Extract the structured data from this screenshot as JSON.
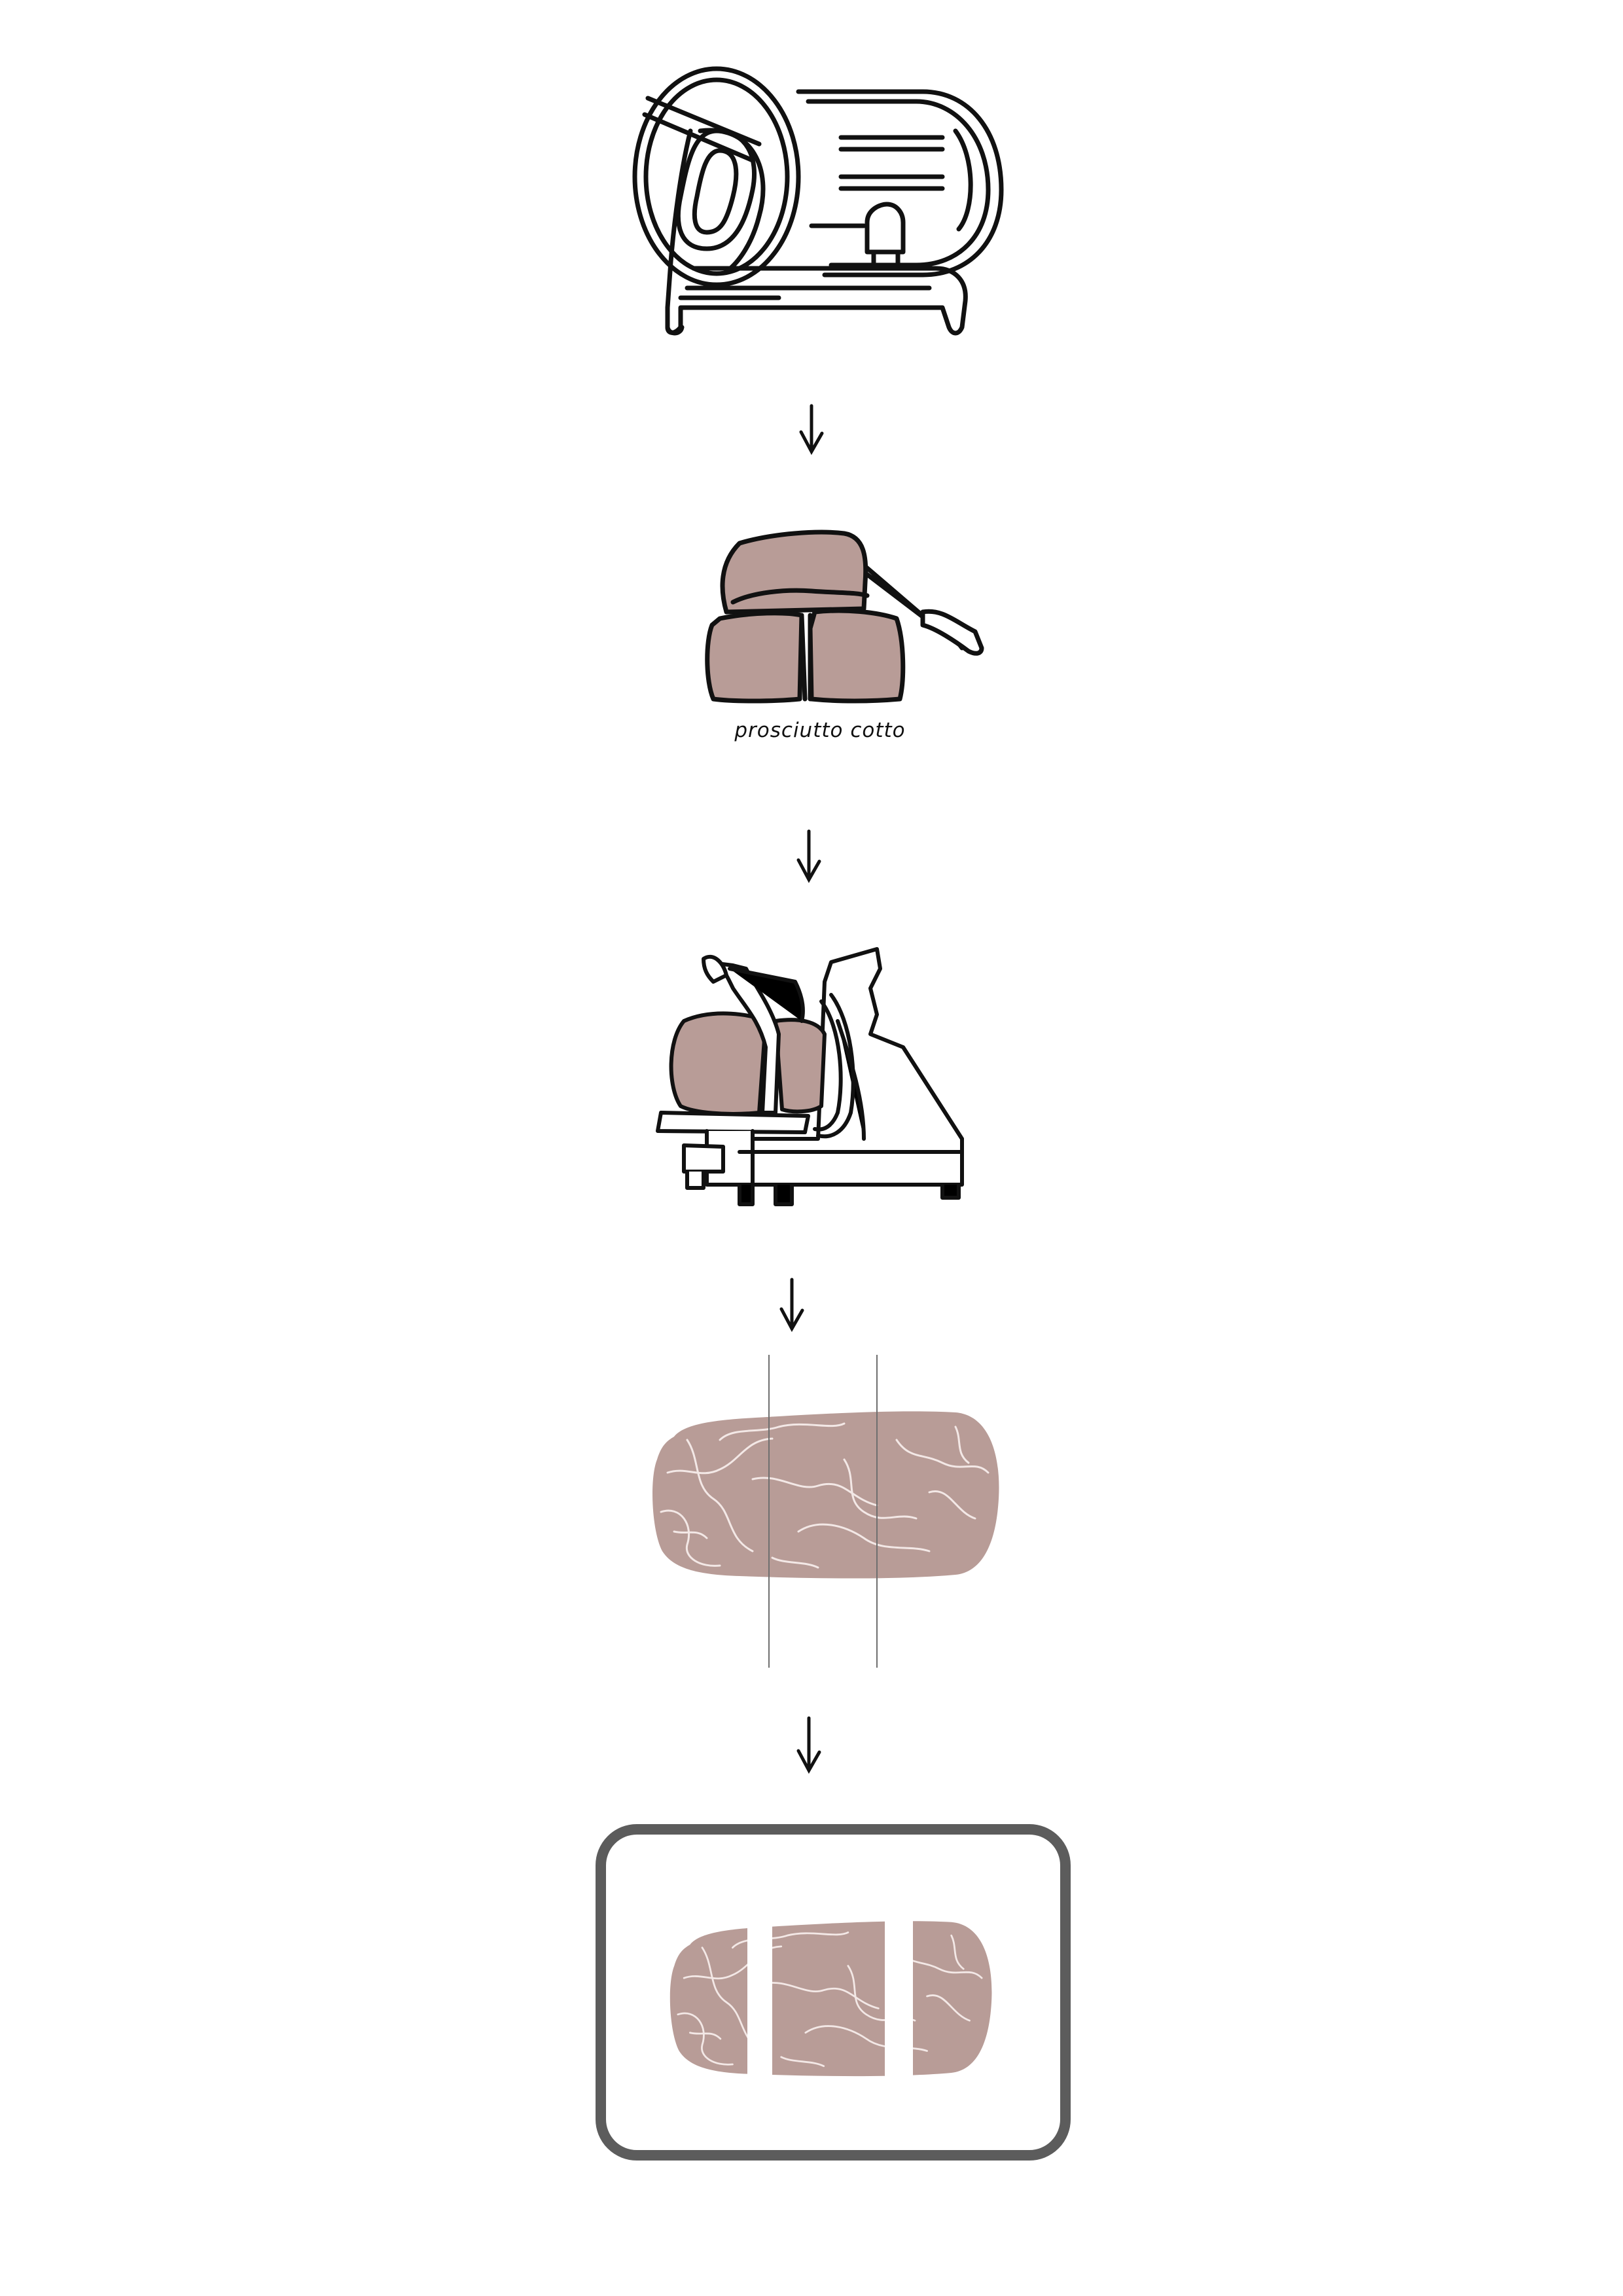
{
  "colors": {
    "background": "#ffffff",
    "line": "#111111",
    "meat": "#b89c97",
    "meat_vein": "#f3e8e6",
    "tray": "#5c5c5c",
    "cut_line": "#6f6f6f"
  },
  "steps": [
    {
      "id": "step-1",
      "icon": "cooker-machine-icon"
    },
    {
      "id": "step-2",
      "icon": "prosciutto-cotto-ham-icon",
      "label": "prosciutto cotto"
    },
    {
      "id": "step-3",
      "icon": "meat-slicer-icon"
    },
    {
      "id": "step-4",
      "icon": "ham-slab-with-cut-lines-icon"
    },
    {
      "id": "step-5",
      "icon": "tray-with-ham-pieces-icon"
    }
  ],
  "arrows": [
    {
      "icon": "arrow-down-icon"
    },
    {
      "icon": "arrow-down-icon"
    },
    {
      "icon": "arrow-down-icon"
    },
    {
      "icon": "arrow-down-icon"
    }
  ]
}
